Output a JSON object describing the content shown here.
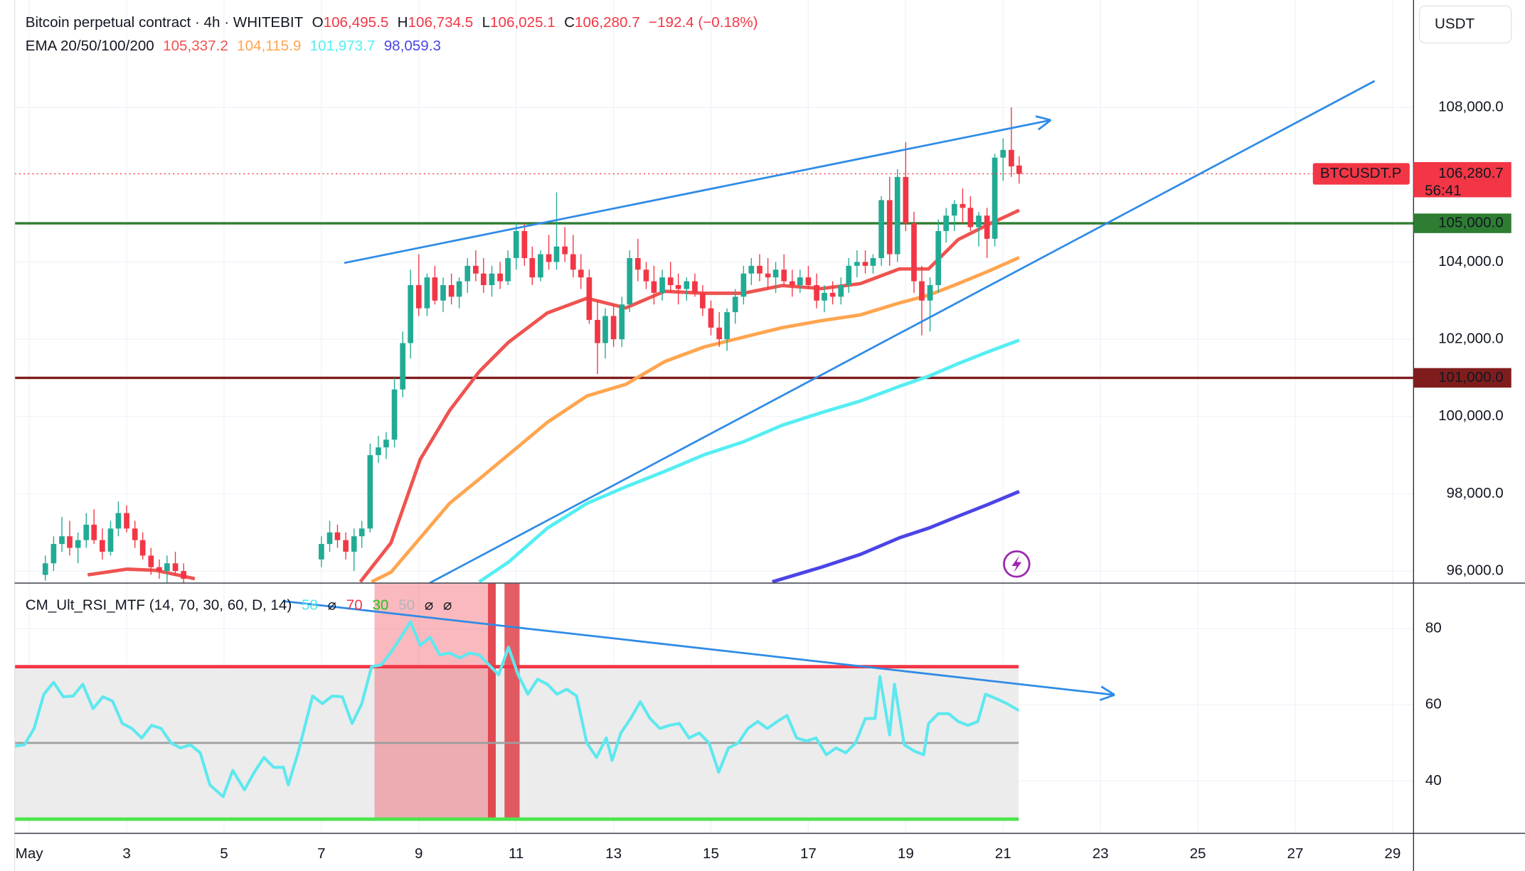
{
  "chart_data": [
    {
      "type": "candlestick",
      "title": "Bitcoin perpetual contract · 4h · WHITEBIT",
      "ohlc_legend": [
        {
          "label": "O",
          "value": "106,495.5"
        },
        {
          "label": "H",
          "value": "106,734.5"
        },
        {
          "label": "L",
          "value": "106,025.1"
        },
        {
          "label": "C",
          "value": "106,280.7"
        }
      ],
      "change": "−192.4 (−0.18%)",
      "currency": "USDT",
      "up_color": "#22ab94",
      "down_color": "#f23645",
      "xlim": [
        0.7,
        29.43
      ],
      "ylim": [
        95700,
        110780
      ],
      "yticks": [
        {
          "value": 96000,
          "label": "96,000.0"
        },
        {
          "value": 98000,
          "label": "98,000.0"
        },
        {
          "value": 100000,
          "label": "100,000.0"
        },
        {
          "value": 102000,
          "label": "102,000.0"
        },
        {
          "value": 104000,
          "label": "104,000.0"
        },
        {
          "value": 108000,
          "label": "108,000.0"
        }
      ],
      "grid": true,
      "x": [
        1.33,
        1.5,
        1.67,
        1.83,
        2,
        2.17,
        2.33,
        2.5,
        2.67,
        2.83,
        3,
        3.17,
        3.33,
        3.5,
        3.67,
        3.83,
        4,
        4.17,
        7,
        7.17,
        7.33,
        7.5,
        7.67,
        7.83,
        8,
        8.17,
        8.33,
        8.5,
        8.67,
        8.83,
        9,
        9.17,
        9.33,
        9.5,
        9.67,
        9.83,
        10,
        10.17,
        10.33,
        10.5,
        10.67,
        10.83,
        11,
        11.17,
        11.33,
        11.5,
        11.67,
        11.83,
        12,
        12.17,
        12.33,
        12.5,
        12.67,
        12.83,
        13,
        13.17,
        13.33,
        13.5,
        13.67,
        13.83,
        14,
        14.17,
        14.33,
        14.5,
        14.67,
        14.83,
        15,
        15.17,
        15.33,
        15.5,
        15.67,
        15.83,
        16,
        16.17,
        16.33,
        16.5,
        16.67,
        16.83,
        17,
        17.17,
        17.33,
        17.5,
        17.67,
        17.83,
        18,
        18.17,
        18.33,
        18.5,
        18.67,
        18.83,
        19,
        19.17,
        19.33,
        19.5,
        19.67,
        19.83,
        20,
        20.17,
        20.33,
        20.5,
        20.67,
        20.83,
        21,
        21.17,
        21.33
      ],
      "open": [
        95900,
        96200,
        96700,
        96900,
        96600,
        96800,
        97200,
        96800,
        96500,
        97100,
        97500,
        97100,
        96800,
        96400,
        96100,
        96000,
        96200,
        96000,
        96300,
        96700,
        97000,
        96800,
        96500,
        96900,
        97100,
        99000,
        99200,
        99400,
        100700,
        101900,
        103400,
        102800,
        103600,
        103000,
        103400,
        103100,
        103500,
        103900,
        103700,
        103400,
        103700,
        103500,
        104100,
        104800,
        104100,
        103600,
        104200,
        104000,
        104400,
        104200,
        103800,
        103600,
        102500,
        101900,
        102600,
        102000,
        102900,
        104100,
        103800,
        103500,
        103200,
        103600,
        103400,
        103300,
        103500,
        103200,
        102800,
        102300,
        102000,
        102700,
        103100,
        103700,
        103900,
        103700,
        103600,
        103800,
        103500,
        103400,
        103600,
        103400,
        103000,
        103200,
        103100,
        103400,
        103900,
        104000,
        103900,
        104100,
        105600,
        104200,
        106200,
        105000,
        103500,
        103000,
        103400,
        104800,
        105200,
        105500,
        105400,
        104900,
        105200,
        104600,
        106700,
        106900,
        106495.5
      ],
      "high": [
        96400,
        96900,
        97400,
        97300,
        97000,
        97500,
        97600,
        97100,
        97300,
        97800,
        97700,
        97300,
        97000,
        96600,
        96300,
        96400,
        96500,
        96200,
        96900,
        97300,
        97200,
        97000,
        97100,
        97300,
        99300,
        99500,
        99600,
        101000,
        102200,
        103800,
        104200,
        103700,
        103900,
        103600,
        103700,
        103600,
        104100,
        104300,
        104100,
        103900,
        104000,
        104300,
        105000,
        105000,
        104400,
        104300,
        104700,
        105800,
        104900,
        104700,
        104200,
        103800,
        103000,
        102800,
        102900,
        103100,
        104300,
        104600,
        104000,
        103900,
        103800,
        104000,
        103700,
        103600,
        103700,
        103400,
        103000,
        102700,
        102800,
        103300,
        103900,
        104100,
        104200,
        104100,
        104000,
        104200,
        103800,
        103800,
        103900,
        103700,
        103400,
        103500,
        103600,
        104100,
        104300,
        104300,
        104200,
        105700,
        106200,
        106400,
        107100,
        105300,
        103900,
        103600,
        105100,
        105400,
        105600,
        105900,
        105700,
        105300,
        105400,
        106800,
        107200,
        108000,
        106734.5
      ],
      "low": [
        95750,
        96000,
        96500,
        96400,
        96200,
        96600,
        96700,
        96300,
        96400,
        96900,
        97000,
        96600,
        96300,
        95900,
        95800,
        95700,
        95900,
        95600,
        96100,
        96500,
        96600,
        96300,
        96000,
        96600,
        97000,
        98800,
        98900,
        99200,
        100500,
        101500,
        102600,
        102600,
        102900,
        102700,
        102900,
        102800,
        103200,
        103500,
        103200,
        103100,
        103300,
        103400,
        103800,
        103900,
        103400,
        103500,
        103800,
        103800,
        104000,
        103600,
        103300,
        102400,
        101100,
        101500,
        101800,
        101800,
        102700,
        103500,
        103300,
        102900,
        103000,
        103200,
        102900,
        103000,
        103100,
        102600,
        102100,
        101800,
        101700,
        102400,
        102900,
        103400,
        103500,
        103300,
        103200,
        103400,
        103100,
        103200,
        103300,
        102800,
        102700,
        102900,
        102900,
        103200,
        103600,
        103700,
        103700,
        103900,
        103900,
        104000,
        104800,
        103200,
        102100,
        102200,
        103200,
        104500,
        104800,
        105000,
        104800,
        104400,
        104100,
        104400,
        106100,
        106200,
        106025.1
      ],
      "close": [
        96200,
        96700,
        96900,
        96600,
        96800,
        97200,
        96800,
        96500,
        97100,
        97500,
        97100,
        96800,
        96400,
        96100,
        96000,
        96200,
        96000,
        95800,
        96700,
        97000,
        96800,
        96500,
        96900,
        97100,
        99000,
        99200,
        99400,
        100700,
        101900,
        103400,
        102800,
        103600,
        103000,
        103400,
        103100,
        103500,
        103900,
        103700,
        103400,
        103700,
        103500,
        104100,
        104800,
        104100,
        103600,
        104200,
        104000,
        104400,
        104200,
        103800,
        103600,
        102500,
        101900,
        102600,
        102000,
        102900,
        104100,
        103800,
        103500,
        103200,
        103600,
        103400,
        103300,
        103500,
        103200,
        102800,
        102300,
        102000,
        102700,
        103100,
        103700,
        103900,
        103700,
        103600,
        103800,
        103500,
        103400,
        103600,
        103400,
        103000,
        103200,
        103100,
        103400,
        103900,
        104000,
        103900,
        104100,
        105600,
        104200,
        106200,
        105000,
        103500,
        103000,
        103400,
        104800,
        105200,
        105500,
        105400,
        104900,
        105200,
        104600,
        106700,
        106900,
        106473.1,
        106280.7
      ],
      "overlay_legend": "EMA 20/50/100/200",
      "series": [
        {
          "color": "#ef5350",
          "legend_value": "105,337.2",
          "x": [
            2.2,
            3.0,
            3.6,
            4.4,
            5.5,
            7.8,
            8.43,
            9.03,
            9.63,
            10.24,
            10.84,
            11.64,
            12.45,
            13.25,
            14.05,
            14.86,
            15.66,
            16.46,
            17.27,
            18.07,
            18.87,
            19.47,
            20.08,
            20.68,
            21.33
          ],
          "values": [
            95900,
            96050,
            96020,
            95800,
            null,
            95720,
            96730,
            98890,
            100150,
            101160,
            101920,
            102680,
            103060,
            102810,
            103240,
            103190,
            103190,
            103390,
            103310,
            103440,
            103820,
            103820,
            104580,
            104960,
            105337.2
          ]
        },
        {
          "color": "#ffa54f",
          "legend_value": "104,115.9",
          "x": [
            8.03,
            8.43,
            9.03,
            9.63,
            10.24,
            10.84,
            11.64,
            12.45,
            13.25,
            14.05,
            14.86,
            15.66,
            16.46,
            17.27,
            18.07,
            18.87,
            19.47,
            20.08,
            20.68,
            21.33
          ],
          "values": [
            95720,
            95970,
            96860,
            97750,
            98380,
            99010,
            99850,
            100530,
            100830,
            101420,
            101800,
            102050,
            102300,
            102480,
            102630,
            102940,
            103140,
            103440,
            103750,
            104115.9
          ]
        },
        {
          "color": "#55eef2",
          "legend_value": "101,973.7",
          "x": [
            10.24,
            10.84,
            11.64,
            12.45,
            13.25,
            14.05,
            14.86,
            15.66,
            16.46,
            17.27,
            18.07,
            18.87,
            19.47,
            20.08,
            20.68,
            21.33
          ],
          "values": [
            95720,
            96230,
            97110,
            97750,
            98180,
            98580,
            99010,
            99340,
            99770,
            100100,
            100400,
            100780,
            101040,
            101370,
            101670,
            101973.7
          ]
        },
        {
          "color": "#4b44e6",
          "legend_value": "98,059.3",
          "x": [
            16.26,
            17.27,
            18.07,
            18.87,
            19.47,
            20.08,
            20.68,
            21.33
          ],
          "values": [
            95720,
            96100,
            96430,
            96860,
            97110,
            97420,
            97720,
            98059.3
          ]
        }
      ],
      "horizontal_lines": [
        {
          "value": 105000,
          "label": "105,000.0",
          "color": "#2e7d32"
        },
        {
          "value": 101000,
          "label": "101,000.0",
          "color": "#7f1d1d"
        }
      ],
      "last_price": {
        "value": 106280.7,
        "label": "106,280.7",
        "symbol": "BTCUSDT.P",
        "countdown": "56:41",
        "color": "#f23645"
      },
      "trendlines": [
        {
          "color": "#2f8be6",
          "arrow": true,
          "points": [
            [
              7.47,
              103974
            ],
            [
              21.98,
              107671
            ]
          ]
        },
        {
          "color": "#2f8be6",
          "arrow": false,
          "points": [
            [
              9.23,
              95695
            ],
            [
              28.63,
              108684
            ]
          ]
        }
      ]
    },
    {
      "type": "line",
      "title": "CM_Ult_RSI_MTF (14, 70, 30, 60, D, 14)",
      "legend_values": [
        {
          "text": "58",
          "color": "#4fe3ea"
        },
        {
          "text": "⌀",
          "color": "#131722"
        },
        {
          "text": "70",
          "color": "#f23645"
        },
        {
          "text": "30",
          "color": "#22c41a"
        },
        {
          "text": "50",
          "color": "#b2b5be"
        },
        {
          "text": "⌀",
          "color": "#131722"
        },
        {
          "text": "⌀",
          "color": "#131722"
        }
      ],
      "color": "#5ee8ef",
      "xlim": [
        0.7,
        29.43
      ],
      "ylim": [
        26.4,
        91.8
      ],
      "yticks": [
        40,
        60,
        80
      ],
      "xticks": [
        {
          "value": 1,
          "label": "May"
        },
        3,
        5,
        7,
        9,
        11,
        13,
        15,
        17,
        19,
        21,
        23,
        25,
        27,
        29
      ],
      "band": [
        30,
        70
      ],
      "band_color": "#ececec",
      "levels": [
        {
          "value": 70,
          "color": "#f23645"
        },
        {
          "value": 50,
          "color": "#9e9e9e"
        },
        {
          "value": 30,
          "color": "#4ee44e"
        }
      ],
      "highlights": [
        {
          "x": [
            8.09,
            10.58
          ],
          "color": "rgba(242,54,69,0.35)"
        },
        {
          "x": [
            10.42,
            10.58
          ],
          "color": "rgba(220,40,50,0.75)"
        },
        {
          "x": [
            10.76,
            11.07
          ],
          "color": "rgba(220,40,50,0.75)"
        }
      ],
      "x": [
        0.7,
        0.9,
        1.1,
        1.3,
        1.5,
        1.7,
        1.9,
        2.1,
        2.31,
        2.51,
        2.71,
        2.91,
        3.11,
        3.31,
        3.51,
        3.71,
        3.91,
        4.11,
        4.31,
        4.51,
        4.71,
        4.98,
        5.18,
        5.42,
        5.62,
        5.82,
        6.02,
        6.22,
        6.32,
        6.52,
        6.82,
        7.02,
        7.22,
        7.43,
        7.63,
        7.83,
        8.03,
        8.23,
        8.43,
        8.63,
        8.83,
        9.03,
        9.23,
        9.43,
        9.63,
        9.84,
        10.04,
        10.24,
        10.44,
        10.64,
        10.84,
        11.04,
        11.24,
        11.44,
        11.64,
        11.84,
        12.04,
        12.24,
        12.45,
        12.65,
        12.85,
        12.97,
        13.15,
        13.35,
        13.55,
        13.75,
        13.95,
        14.15,
        14.35,
        14.55,
        14.76,
        14.96,
        15.16,
        15.36,
        15.56,
        15.76,
        15.96,
        16.16,
        16.36,
        16.56,
        16.76,
        16.96,
        17.16,
        17.37,
        17.57,
        17.77,
        17.97,
        18.17,
        18.37,
        18.47,
        18.67,
        18.77,
        18.97,
        19.17,
        19.37,
        19.47,
        19.67,
        19.88,
        20.08,
        20.28,
        20.48,
        20.64,
        20.88,
        21.08,
        21.32
      ],
      "values": [
        49.2,
        49.5,
        53.8,
        62.8,
        65.9,
        62.1,
        62.3,
        65.4,
        59.0,
        62.1,
        61.0,
        55.1,
        53.8,
        51.3,
        54.6,
        53.8,
        50.0,
        48.7,
        49.5,
        47.4,
        39.0,
        35.9,
        42.8,
        37.7,
        42.3,
        46.2,
        43.6,
        43.6,
        39.0,
        47.4,
        62.3,
        60.3,
        62.3,
        62.1,
        55.1,
        60.3,
        70.0,
        70.5,
        73.8,
        77.7,
        81.8,
        75.6,
        77.7,
        73.1,
        73.6,
        72.3,
        73.6,
        73.1,
        70.5,
        67.9,
        75.1,
        67.9,
        62.8,
        66.7,
        65.4,
        62.8,
        64.1,
        62.3,
        50.0,
        46.2,
        51.3,
        45.4,
        52.6,
        56.4,
        60.8,
        56.4,
        53.8,
        54.6,
        55.1,
        51.3,
        52.6,
        50.0,
        42.3,
        48.7,
        50.0,
        53.8,
        55.6,
        53.8,
        55.6,
        57.2,
        51.3,
        50.5,
        51.3,
        46.9,
        48.7,
        47.4,
        50.0,
        56.4,
        56.4,
        67.4,
        52.1,
        65.4,
        49.5,
        47.9,
        46.9,
        55.1,
        57.7,
        57.7,
        55.6,
        54.6,
        55.6,
        62.8,
        61.5,
        60.3,
        58.5
      ],
      "trendlines": [
        {
          "color": "#2f8be6",
          "arrow": true,
          "points": [
            [
              6.22,
              87.2
            ],
            [
              23.29,
              62.6
            ]
          ]
        }
      ]
    }
  ]
}
